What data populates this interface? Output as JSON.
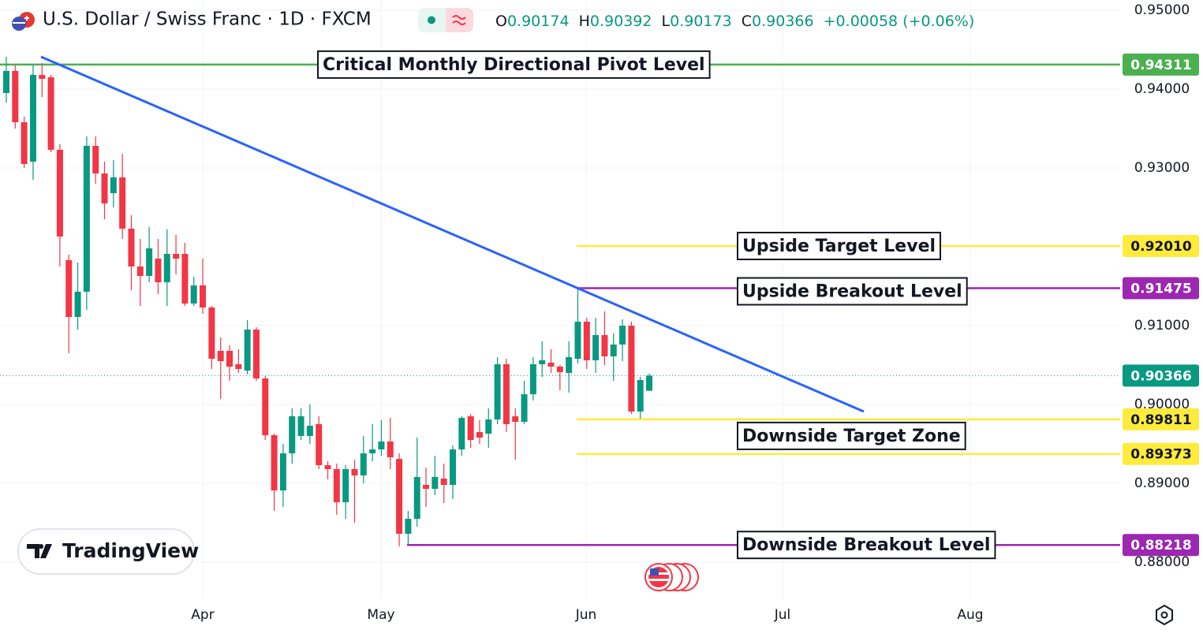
{
  "chart_data": {
    "type": "candlestick",
    "title": "U.S. Dollar / Swiss Franc · 1D · FXCM",
    "ohlc_labels": [
      "O",
      "H",
      "L",
      "C"
    ],
    "change": "+0.00058 (+0.06%)",
    "watermark": "TradingView",
    "up_color": "#089981",
    "down_color": "#f23645",
    "ylim": [
      0.8753,
      0.9513
    ],
    "yticks": [
      {
        "value": 0.95,
        "label": "0.95000"
      },
      {
        "value": 0.94,
        "label": "0.94000"
      },
      {
        "value": 0.93,
        "label": "0.93000"
      },
      {
        "value": 0.91,
        "label": "0.91000"
      },
      {
        "value": 0.9,
        "label": "0.90000"
      },
      {
        "value": 0.89,
        "label": "0.89000"
      },
      {
        "value": 0.88,
        "label": "0.88000"
      }
    ],
    "grid": true,
    "months": [
      "Apr",
      "May",
      "Jun",
      "Jul",
      "Aug"
    ],
    "trendline": {
      "color": "#2962ff",
      "values": [
        0.9441,
        0.8991
      ]
    },
    "levels": [
      {
        "name": "Critical Monthly Directional Pivot Level",
        "value": 0.94311,
        "color": "#4caf50"
      },
      {
        "name": "Upside Target Level",
        "value": 0.9201,
        "value_label": "0.92010",
        "color": "#ffeb3b"
      },
      {
        "name": "Upside Breakout Level",
        "value": 0.91475,
        "color": "#9c27b0"
      },
      {
        "name": "Downside Target Zone",
        "value": 0.89811,
        "color": "#ffeb3b"
      },
      {
        "value": 0.89373,
        "color": "#ffeb3b"
      },
      {
        "name": "Downside Breakout Level",
        "value": 0.88218,
        "color": "#9c27b0"
      }
    ],
    "candles": [
      {
        "o": 0.9395,
        "h": 0.9441,
        "l": 0.9383,
        "c": 0.9423
      },
      {
        "o": 0.9423,
        "h": 0.943,
        "l": 0.935,
        "c": 0.9358
      },
      {
        "o": 0.9358,
        "h": 0.9365,
        "l": 0.93,
        "c": 0.9305
      },
      {
        "o": 0.9308,
        "h": 0.943,
        "l": 0.9285,
        "c": 0.9418
      },
      {
        "o": 0.9418,
        "h": 0.9433,
        "l": 0.939,
        "c": 0.9413
      },
      {
        "o": 0.9415,
        "h": 0.9418,
        "l": 0.932,
        "c": 0.9323
      },
      {
        "o": 0.9323,
        "h": 0.933,
        "l": 0.9175,
        "c": 0.9213
      },
      {
        "o": 0.9183,
        "h": 0.919,
        "l": 0.9065,
        "c": 0.9111
      },
      {
        "o": 0.9111,
        "h": 0.918,
        "l": 0.9095,
        "c": 0.9143
      },
      {
        "o": 0.9143,
        "h": 0.934,
        "l": 0.912,
        "c": 0.9328
      },
      {
        "o": 0.9328,
        "h": 0.934,
        "l": 0.928,
        "c": 0.9293
      },
      {
        "o": 0.9293,
        "h": 0.9308,
        "l": 0.9235,
        "c": 0.9255
      },
      {
        "o": 0.9268,
        "h": 0.931,
        "l": 0.925,
        "c": 0.9288
      },
      {
        "o": 0.9288,
        "h": 0.9318,
        "l": 0.921,
        "c": 0.9223
      },
      {
        "o": 0.9223,
        "h": 0.924,
        "l": 0.9145,
        "c": 0.9175
      },
      {
        "o": 0.9175,
        "h": 0.921,
        "l": 0.9125,
        "c": 0.9163
      },
      {
        "o": 0.9163,
        "h": 0.9225,
        "l": 0.9155,
        "c": 0.9198
      },
      {
        "o": 0.9185,
        "h": 0.921,
        "l": 0.914,
        "c": 0.9155
      },
      {
        "o": 0.9155,
        "h": 0.9222,
        "l": 0.9125,
        "c": 0.9191
      },
      {
        "o": 0.9191,
        "h": 0.9215,
        "l": 0.9165,
        "c": 0.9185
      },
      {
        "o": 0.9191,
        "h": 0.9205,
        "l": 0.9125,
        "c": 0.9128
      },
      {
        "o": 0.9128,
        "h": 0.9162,
        "l": 0.9125,
        "c": 0.9151
      },
      {
        "o": 0.9151,
        "h": 0.9185,
        "l": 0.9115,
        "c": 0.9123
      },
      {
        "o": 0.9123,
        "h": 0.9125,
        "l": 0.9045,
        "c": 0.9058
      },
      {
        "o": 0.9068,
        "h": 0.9085,
        "l": 0.9007,
        "c": 0.9055
      },
      {
        "o": 0.9068,
        "h": 0.9075,
        "l": 0.903,
        "c": 0.9048
      },
      {
        "o": 0.9051,
        "h": 0.907,
        "l": 0.904,
        "c": 0.9045
      },
      {
        "o": 0.9043,
        "h": 0.9107,
        "l": 0.9038,
        "c": 0.9095
      },
      {
        "o": 0.9095,
        "h": 0.9098,
        "l": 0.903,
        "c": 0.9033
      },
      {
        "o": 0.9033,
        "h": 0.9036,
        "l": 0.8955,
        "c": 0.8961
      },
      {
        "o": 0.8961,
        "h": 0.8963,
        "l": 0.8865,
        "c": 0.8891
      },
      {
        "o": 0.8891,
        "h": 0.895,
        "l": 0.887,
        "c": 0.8938
      },
      {
        "o": 0.8938,
        "h": 0.8995,
        "l": 0.8925,
        "c": 0.8985
      },
      {
        "o": 0.896,
        "h": 0.8995,
        "l": 0.8955,
        "c": 0.8985
      },
      {
        "o": 0.896,
        "h": 0.9,
        "l": 0.895,
        "c": 0.8973
      },
      {
        "o": 0.8975,
        "h": 0.8985,
        "l": 0.8918,
        "c": 0.8923
      },
      {
        "o": 0.8923,
        "h": 0.8928,
        "l": 0.8905,
        "c": 0.8918
      },
      {
        "o": 0.8918,
        "h": 0.8925,
        "l": 0.886,
        "c": 0.8876
      },
      {
        "o": 0.8876,
        "h": 0.8923,
        "l": 0.8855,
        "c": 0.8918
      },
      {
        "o": 0.8918,
        "h": 0.893,
        "l": 0.885,
        "c": 0.891
      },
      {
        "o": 0.891,
        "h": 0.896,
        "l": 0.89,
        "c": 0.8938
      },
      {
        "o": 0.8938,
        "h": 0.8975,
        "l": 0.8928,
        "c": 0.8943
      },
      {
        "o": 0.8943,
        "h": 0.898,
        "l": 0.8935,
        "c": 0.8953
      },
      {
        "o": 0.8953,
        "h": 0.8983,
        "l": 0.8918,
        "c": 0.8933
      },
      {
        "o": 0.8931,
        "h": 0.8938,
        "l": 0.882,
        "c": 0.8836
      },
      {
        "o": 0.8836,
        "h": 0.8865,
        "l": 0.8823,
        "c": 0.8855
      },
      {
        "o": 0.8855,
        "h": 0.8958,
        "l": 0.8845,
        "c": 0.8908
      },
      {
        "o": 0.8898,
        "h": 0.892,
        "l": 0.887,
        "c": 0.8893
      },
      {
        "o": 0.8893,
        "h": 0.8935,
        "l": 0.8885,
        "c": 0.8908
      },
      {
        "o": 0.8906,
        "h": 0.8925,
        "l": 0.8875,
        "c": 0.8898
      },
      {
        "o": 0.8898,
        "h": 0.8948,
        "l": 0.888,
        "c": 0.8943
      },
      {
        "o": 0.8943,
        "h": 0.8985,
        "l": 0.8935,
        "c": 0.8983
      },
      {
        "o": 0.8985,
        "h": 0.8988,
        "l": 0.8945,
        "c": 0.8955
      },
      {
        "o": 0.8965,
        "h": 0.898,
        "l": 0.895,
        "c": 0.8958
      },
      {
        "o": 0.8963,
        "h": 0.8995,
        "l": 0.8945,
        "c": 0.8981
      },
      {
        "o": 0.8981,
        "h": 0.906,
        "l": 0.8975,
        "c": 0.9051
      },
      {
        "o": 0.9051,
        "h": 0.9058,
        "l": 0.8965,
        "c": 0.8975
      },
      {
        "o": 0.8985,
        "h": 0.8995,
        "l": 0.893,
        "c": 0.8978
      },
      {
        "o": 0.8978,
        "h": 0.903,
        "l": 0.8975,
        "c": 0.9013
      },
      {
        "o": 0.9013,
        "h": 0.906,
        "l": 0.9005,
        "c": 0.9051
      },
      {
        "o": 0.9051,
        "h": 0.908,
        "l": 0.9035,
        "c": 0.9056
      },
      {
        "o": 0.9053,
        "h": 0.907,
        "l": 0.904,
        "c": 0.9048
      },
      {
        "o": 0.9048,
        "h": 0.905,
        "l": 0.9018,
        "c": 0.9041
      },
      {
        "o": 0.904,
        "h": 0.908,
        "l": 0.9015,
        "c": 0.906
      },
      {
        "o": 0.9058,
        "h": 0.9147,
        "l": 0.9052,
        "c": 0.9105
      },
      {
        "o": 0.9105,
        "h": 0.911,
        "l": 0.9045,
        "c": 0.9056
      },
      {
        "o": 0.9056,
        "h": 0.911,
        "l": 0.904,
        "c": 0.9088
      },
      {
        "o": 0.9088,
        "h": 0.9118,
        "l": 0.905,
        "c": 0.9061
      },
      {
        "o": 0.9061,
        "h": 0.909,
        "l": 0.903,
        "c": 0.9076
      },
      {
        "o": 0.9076,
        "h": 0.9108,
        "l": 0.9055,
        "c": 0.91
      },
      {
        "o": 0.91,
        "h": 0.9105,
        "l": 0.8988,
        "c": 0.8991
      },
      {
        "o": 0.8991,
        "h": 0.9035,
        "l": 0.8982,
        "c": 0.9031
      },
      {
        "o": 0.90174,
        "h": 0.90392,
        "l": 0.90173,
        "c": 0.90366
      }
    ]
  }
}
